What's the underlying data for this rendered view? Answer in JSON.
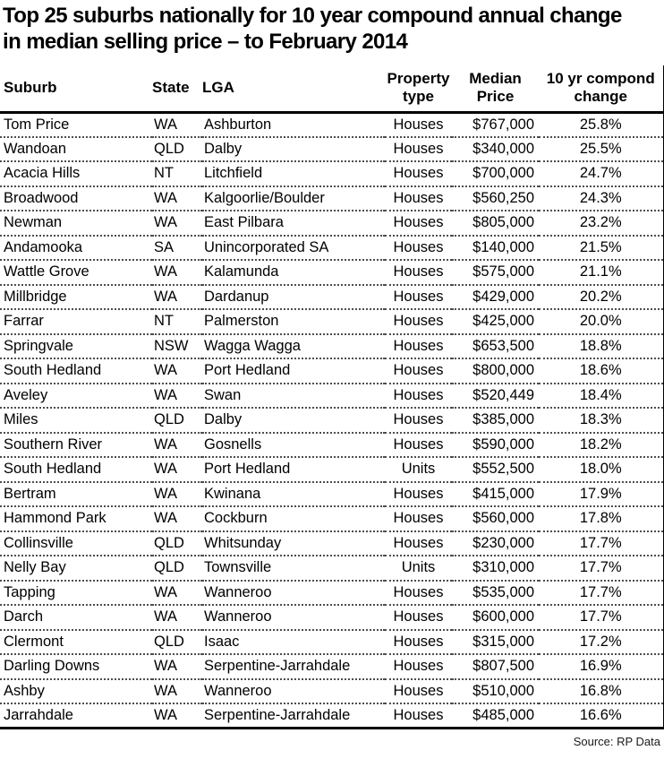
{
  "title": "Top 25 suburbs nationally for 10 year compound annual change in median selling price – to February 2014",
  "source": "Source: RP Data",
  "table": {
    "headers": {
      "suburb": "Suburb",
      "state": "State",
      "lga": "LGA",
      "property_line1": "Property",
      "property_line2": "type",
      "median_line1": "Median",
      "median_line2": "Price",
      "change_line1": "10 yr compond",
      "change_line2": "change"
    },
    "rows": [
      {
        "suburb": "Tom Price",
        "state": "WA",
        "lga": "Ashburton",
        "property_type": "Houses",
        "median_price": "$767,000",
        "change": "25.8%"
      },
      {
        "suburb": "Wandoan",
        "state": "QLD",
        "lga": "Dalby",
        "property_type": "Houses",
        "median_price": "$340,000",
        "change": "25.5%"
      },
      {
        "suburb": "Acacia Hills",
        "state": "NT",
        "lga": "Litchfield",
        "property_type": "Houses",
        "median_price": "$700,000",
        "change": "24.7%"
      },
      {
        "suburb": "Broadwood",
        "state": "WA",
        "lga": "Kalgoorlie/Boulder",
        "property_type": "Houses",
        "median_price": "$560,250",
        "change": "24.3%"
      },
      {
        "suburb": "Newman",
        "state": "WA",
        "lga": "East Pilbara",
        "property_type": "Houses",
        "median_price": "$805,000",
        "change": "23.2%"
      },
      {
        "suburb": "Andamooka",
        "state": "SA",
        "lga": "Unincorporated SA",
        "property_type": "Houses",
        "median_price": "$140,000",
        "change": "21.5%"
      },
      {
        "suburb": "Wattle Grove",
        "state": "WA",
        "lga": "Kalamunda",
        "property_type": "Houses",
        "median_price": "$575,000",
        "change": "21.1%"
      },
      {
        "suburb": "Millbridge",
        "state": "WA",
        "lga": "Dardanup",
        "property_type": "Houses",
        "median_price": "$429,000",
        "change": "20.2%"
      },
      {
        "suburb": "Farrar",
        "state": "NT",
        "lga": "Palmerston",
        "property_type": "Houses",
        "median_price": "$425,000",
        "change": "20.0%"
      },
      {
        "suburb": "Springvale",
        "state": "NSW",
        "lga": "Wagga Wagga",
        "property_type": "Houses",
        "median_price": "$653,500",
        "change": "18.8%"
      },
      {
        "suburb": "South Hedland",
        "state": "WA",
        "lga": "Port Hedland",
        "property_type": "Houses",
        "median_price": "$800,000",
        "change": "18.6%"
      },
      {
        "suburb": "Aveley",
        "state": "WA",
        "lga": "Swan",
        "property_type": "Houses",
        "median_price": "$520,449",
        "change": "18.4%"
      },
      {
        "suburb": "Miles",
        "state": "QLD",
        "lga": "Dalby",
        "property_type": "Houses",
        "median_price": "$385,000",
        "change": "18.3%"
      },
      {
        "suburb": "Southern River",
        "state": "WA",
        "lga": "Gosnells",
        "property_type": "Houses",
        "median_price": "$590,000",
        "change": "18.2%"
      },
      {
        "suburb": "South Hedland",
        "state": "WA",
        "lga": "Port Hedland",
        "property_type": "Units",
        "median_price": "$552,500",
        "change": "18.0%"
      },
      {
        "suburb": "Bertram",
        "state": "WA",
        "lga": "Kwinana",
        "property_type": "Houses",
        "median_price": "$415,000",
        "change": "17.9%"
      },
      {
        "suburb": "Hammond Park",
        "state": "WA",
        "lga": "Cockburn",
        "property_type": "Houses",
        "median_price": "$560,000",
        "change": "17.8%"
      },
      {
        "suburb": "Collinsville",
        "state": "QLD",
        "lga": "Whitsunday",
        "property_type": "Houses",
        "median_price": "$230,000",
        "change": "17.7%"
      },
      {
        "suburb": "Nelly Bay",
        "state": "QLD",
        "lga": "Townsville",
        "property_type": "Units",
        "median_price": "$310,000",
        "change": "17.7%"
      },
      {
        "suburb": "Tapping",
        "state": "WA",
        "lga": "Wanneroo",
        "property_type": "Houses",
        "median_price": "$535,000",
        "change": "17.7%"
      },
      {
        "suburb": "Darch",
        "state": "WA",
        "lga": "Wanneroo",
        "property_type": "Houses",
        "median_price": "$600,000",
        "change": "17.7%"
      },
      {
        "suburb": "Clermont",
        "state": "QLD",
        "lga": "Isaac",
        "property_type": "Houses",
        "median_price": "$315,000",
        "change": "17.2%"
      },
      {
        "suburb": "Darling Downs",
        "state": "WA",
        "lga": "Serpentine-Jarrahdale",
        "property_type": "Houses",
        "median_price": "$807,500",
        "change": "16.9%"
      },
      {
        "suburb": "Ashby",
        "state": "WA",
        "lga": "Wanneroo",
        "property_type": "Houses",
        "median_price": "$510,000",
        "change": "16.8%"
      },
      {
        "suburb": "Jarrahdale",
        "state": "WA",
        "lga": "Serpentine-Jarrahdale",
        "property_type": "Houses",
        "median_price": "$485,000",
        "change": "16.6%"
      }
    ]
  }
}
